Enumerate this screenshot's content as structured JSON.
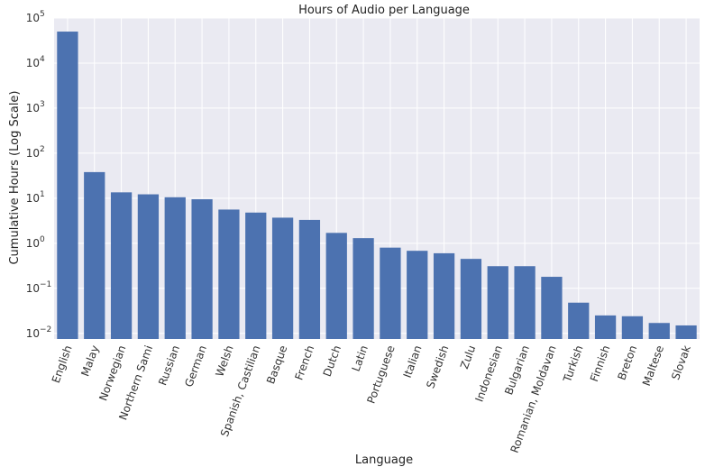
{
  "chart_data": {
    "type": "bar",
    "title": "Hours of Audio per Language",
    "xlabel": "Language",
    "ylabel": "Cumulative Hours (Log Scale)",
    "yscale": "log",
    "ylim": [
      0.0075,
      100000
    ],
    "y_ticks": [
      {
        "value": 0.01,
        "mantissa": "10",
        "exp": "−2"
      },
      {
        "value": 0.1,
        "mantissa": "10",
        "exp": "−1"
      },
      {
        "value": 1,
        "mantissa": "10",
        "exp": "0"
      },
      {
        "value": 10,
        "mantissa": "10",
        "exp": "1"
      },
      {
        "value": 100,
        "mantissa": "10",
        "exp": "2"
      },
      {
        "value": 1000,
        "mantissa": "10",
        "exp": "3"
      },
      {
        "value": 10000,
        "mantissa": "10",
        "exp": "4"
      },
      {
        "value": 100000,
        "mantissa": "10",
        "exp": "5"
      }
    ],
    "grid": true,
    "categories": [
      "English",
      "Malay",
      "Norwegian",
      "Northern Sami",
      "Russian",
      "German",
      "Welsh",
      "Spanish, Castilian",
      "Basque",
      "French",
      "Dutch",
      "Latin",
      "Portuguese",
      "Italian",
      "Swedish",
      "Zulu",
      "Indonesian",
      "Bulgarian",
      "Romanian, Moldavan",
      "Turkish",
      "Finnish",
      "Breton",
      "Maltese",
      "Slovak"
    ],
    "values": [
      50000,
      38,
      13.5,
      12.2,
      10.5,
      9.5,
      5.6,
      4.8,
      3.7,
      3.3,
      1.7,
      1.3,
      0.8,
      0.68,
      0.6,
      0.45,
      0.31,
      0.31,
      0.18,
      0.048,
      0.025,
      0.024,
      0.017,
      0.015
    ],
    "color": "#4c72b0",
    "background": "#eaeaf2"
  }
}
